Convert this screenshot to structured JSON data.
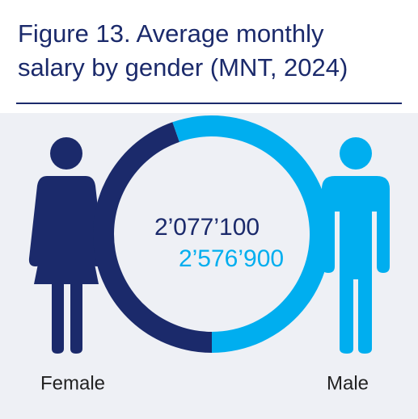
{
  "chart_data": {
    "type": "donut",
    "title": [
      "Figure 13. Average monthly",
      "salary by gender (MNT, 2024)"
    ],
    "categories": [
      "Female",
      "Male"
    ],
    "values": [
      2077100,
      2576900
    ],
    "value_labels": [
      "2’077’100",
      "2’576’900"
    ],
    "colors": [
      "#1b2a6b",
      "#00aeef"
    ]
  }
}
